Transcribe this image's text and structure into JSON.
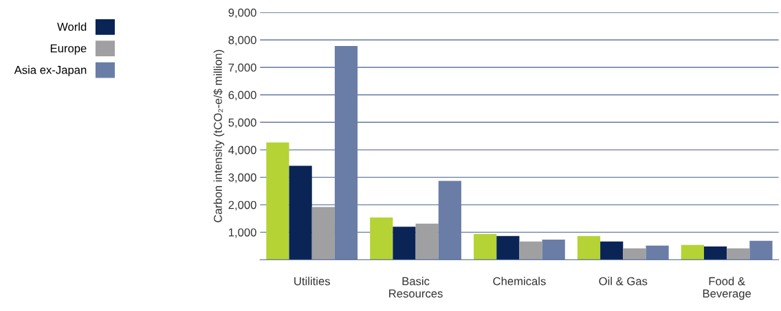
{
  "chart_data": {
    "type": "bar",
    "ylabel": "Carbon intensity (tCO₂-e/$ million)",
    "categories": [
      "Utilities",
      "Basic\nResources",
      "Chemicals",
      "Oil & Gas",
      "Food &\nBeverage"
    ],
    "series": [
      {
        "color": "#b5d334",
        "values": [
          4270,
          1540,
          940,
          860,
          540
        ]
      },
      {
        "name": "World",
        "color": "#0a2455",
        "values": [
          3420,
          1200,
          860,
          660,
          480
        ]
      },
      {
        "name": "Europe",
        "color": "#a0a0a2",
        "values": [
          1920,
          1310,
          660,
          410,
          410
        ]
      },
      {
        "name": "Asia ex-Japan",
        "color": "#6a7da6",
        "values": [
          7780,
          2870,
          730,
          510,
          690
        ]
      }
    ],
    "ylim": [
      0,
      9000
    ],
    "yticks": [
      {
        "value": 1000,
        "label": "1,000"
      },
      {
        "value": 2000,
        "label": "2,000"
      },
      {
        "value": 3000,
        "label": "3,000"
      },
      {
        "value": 4000,
        "label": "4,000"
      },
      {
        "value": 5000,
        "label": "5,000"
      },
      {
        "value": 6000,
        "label": "6,000"
      },
      {
        "value": 7000,
        "label": "7,000"
      },
      {
        "value": 8000,
        "label": "8,000"
      },
      {
        "value": 9000,
        "label": "9,000"
      }
    ],
    "grid": "y",
    "legend": "left"
  }
}
